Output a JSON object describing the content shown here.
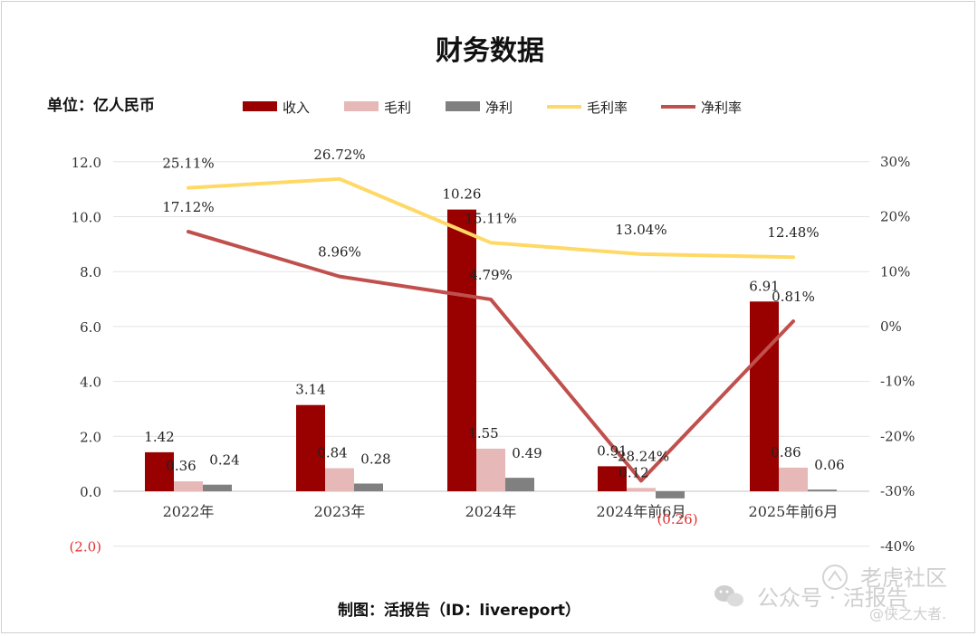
{
  "chart_data": {
    "type": "bar",
    "title": "财务数据",
    "unit_label": "单位：亿人民币",
    "categories": [
      "2022年",
      "2023年",
      "2024年",
      "2024年前6月",
      "2025年前6月"
    ],
    "left_axis": {
      "ticks": [
        "12.0",
        "10.0",
        "8.0",
        "6.0",
        "4.0",
        "2.0",
        "0.0",
        "(2.0)"
      ],
      "range": [
        -2,
        12
      ]
    },
    "right_axis": {
      "ticks": [
        "30%",
        "20%",
        "10%",
        "0%",
        "-10%",
        "-20%",
        "-30%",
        "-40%"
      ],
      "range": [
        -40,
        30
      ]
    },
    "bar_series": [
      {
        "name": "收入",
        "color": "#990000",
        "values": [
          1.42,
          3.14,
          10.26,
          0.91,
          6.91
        ],
        "labels": [
          "1.42",
          "3.14",
          "10.26",
          "0.91",
          "6.91"
        ]
      },
      {
        "name": "毛利",
        "color": "#e6b8b7",
        "values": [
          0.36,
          0.84,
          1.55,
          0.12,
          0.86
        ],
        "labels": [
          "0.36",
          "0.84",
          "1.55",
          "0.12",
          "0.86"
        ]
      },
      {
        "name": "净利",
        "color": "#808080",
        "values": [
          0.24,
          0.28,
          0.49,
          -0.26,
          0.06
        ],
        "labels": [
          "0.24",
          "0.28",
          "0.49",
          "(0.26)",
          "0.06"
        ]
      }
    ],
    "line_series": [
      {
        "name": "毛利率",
        "color": "#ffd966",
        "values": [
          25.11,
          26.72,
          15.11,
          13.04,
          12.48
        ],
        "labels": [
          "25.11%",
          "26.72%",
          "15.11%",
          "13.04%",
          "12.48%"
        ]
      },
      {
        "name": "净利率",
        "color": "#c0504d",
        "values": [
          17.12,
          8.96,
          4.79,
          -28.24,
          0.81
        ],
        "labels": [
          "17.12%",
          "8.96%",
          "4.79%",
          "-28.24%",
          "0.81%"
        ]
      }
    ],
    "grid": true,
    "legend_position": "top"
  },
  "source_text": "制图：活报告（ID：livereport）",
  "watermark": {
    "wechat": "公众号 · 活报告",
    "community": "老虎社区",
    "author": "@侠之大者."
  }
}
